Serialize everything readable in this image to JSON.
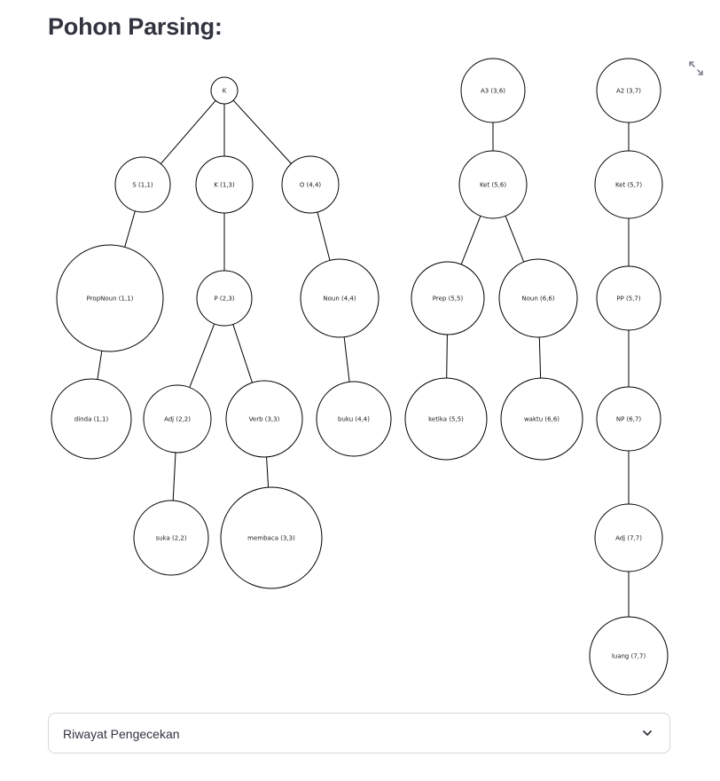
{
  "header": {
    "title": "Pohon Parsing:"
  },
  "toolbar": {
    "expand_icon": "fullscreen-expand-icon"
  },
  "tree": {
    "nodes": [
      {
        "id": "n1",
        "label": "K"
      },
      {
        "id": "n2",
        "label": "S (1,1)"
      },
      {
        "id": "n3",
        "label": "K (1,3)"
      },
      {
        "id": "n4",
        "label": "O (4,4)"
      },
      {
        "id": "n5",
        "label": "PropNoun (1,1)"
      },
      {
        "id": "n6",
        "label": "P (2,3)"
      },
      {
        "id": "n7",
        "label": "Noun (4,4)"
      },
      {
        "id": "n8",
        "label": "dinda (1,1)"
      },
      {
        "id": "n9",
        "label": "Adj (2,2)"
      },
      {
        "id": "n10",
        "label": "Verb (3,3)"
      },
      {
        "id": "n11",
        "label": "buku (4,4)"
      },
      {
        "id": "n12",
        "label": "suka (2,2)"
      },
      {
        "id": "n13",
        "label": "membaca (3,3)"
      },
      {
        "id": "n14",
        "label": "A3 (3,6)"
      },
      {
        "id": "n15",
        "label": "Ket (5,6)"
      },
      {
        "id": "n16",
        "label": "Prep (5,5)"
      },
      {
        "id": "n17",
        "label": "Noun (6,6)"
      },
      {
        "id": "n18",
        "label": "ketika (5,5)"
      },
      {
        "id": "n19",
        "label": "waktu (6,6)"
      },
      {
        "id": "n20",
        "label": "A2 (3,7)"
      },
      {
        "id": "n21",
        "label": "Ket (5,7)"
      },
      {
        "id": "n22",
        "label": "PP (5,7)"
      },
      {
        "id": "n23",
        "label": "NP (6,7)"
      },
      {
        "id": "n24",
        "label": "Adj (7,7)"
      },
      {
        "id": "n25",
        "label": "luang (7,7)"
      }
    ],
    "edges": [
      [
        "n1",
        "n2"
      ],
      [
        "n1",
        "n3"
      ],
      [
        "n1",
        "n4"
      ],
      [
        "n2",
        "n5"
      ],
      [
        "n5",
        "n8"
      ],
      [
        "n3",
        "n6"
      ],
      [
        "n6",
        "n9"
      ],
      [
        "n6",
        "n10"
      ],
      [
        "n9",
        "n12"
      ],
      [
        "n10",
        "n13"
      ],
      [
        "n4",
        "n7"
      ],
      [
        "n7",
        "n11"
      ],
      [
        "n14",
        "n15"
      ],
      [
        "n15",
        "n16"
      ],
      [
        "n15",
        "n17"
      ],
      [
        "n16",
        "n18"
      ],
      [
        "n17",
        "n19"
      ],
      [
        "n20",
        "n21"
      ],
      [
        "n21",
        "n22"
      ],
      [
        "n22",
        "n23"
      ],
      [
        "n23",
        "n24"
      ],
      [
        "n24",
        "n25"
      ]
    ]
  },
  "history_expander": {
    "label": "Riwayat Pengecekan",
    "chevron_icon": "chevron-down-icon"
  }
}
